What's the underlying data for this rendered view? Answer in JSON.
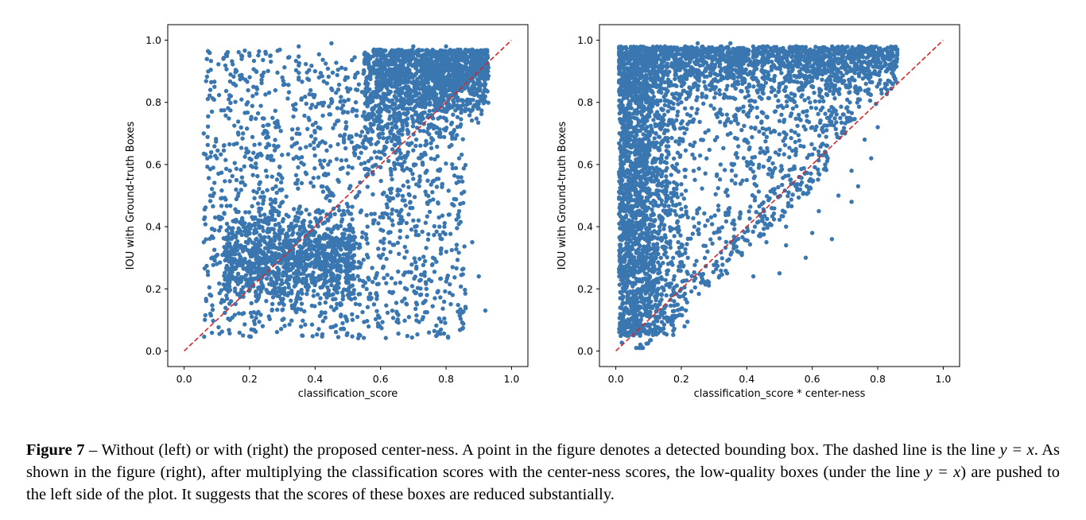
{
  "chart_data": [
    {
      "type": "scatter",
      "xlabel": "classification_score",
      "ylabel": "IOU with Ground-truth Boxes",
      "xlim": [
        -0.05,
        1.05
      ],
      "ylim": [
        -0.05,
        1.05
      ],
      "xticks": [
        "0.0",
        "0.2",
        "0.4",
        "0.6",
        "0.8",
        "1.0"
      ],
      "yticks": [
        "0.0",
        "0.2",
        "0.4",
        "0.6",
        "0.8",
        "1.0"
      ],
      "grid": false,
      "point_color": "#3a76af",
      "reference_line": {
        "from": [
          0,
          0
        ],
        "to": [
          1,
          1
        ],
        "style": "dashed",
        "color": "#d62728"
      },
      "points_note": "about 5000 detections spread over x 0.05–0.93, y 0.03–0.99; densest cluster near x 0.75–0.9, y 0.85–0.97, second dense band x 0.15–0.5, y 0.2–0.45",
      "points": [
        [
          0.12,
          0.94
        ],
        [
          0.2,
          0.95
        ],
        [
          0.35,
          0.98
        ],
        [
          0.45,
          0.99
        ],
        [
          0.58,
          0.97
        ],
        [
          0.7,
          0.98
        ],
        [
          0.8,
          0.98
        ],
        [
          0.88,
          0.97
        ],
        [
          0.92,
          0.96
        ],
        [
          0.85,
          0.9
        ],
        [
          0.78,
          0.88
        ],
        [
          0.72,
          0.92
        ],
        [
          0.65,
          0.9
        ],
        [
          0.6,
          0.85
        ],
        [
          0.5,
          0.88
        ],
        [
          0.4,
          0.9
        ],
        [
          0.3,
          0.88
        ],
        [
          0.22,
          0.9
        ],
        [
          0.15,
          0.86
        ],
        [
          0.08,
          0.84
        ],
        [
          0.06,
          0.7
        ],
        [
          0.1,
          0.62
        ],
        [
          0.18,
          0.7
        ],
        [
          0.28,
          0.72
        ],
        [
          0.38,
          0.75
        ],
        [
          0.48,
          0.78
        ],
        [
          0.58,
          0.76
        ],
        [
          0.68,
          0.8
        ],
        [
          0.75,
          0.72
        ],
        [
          0.82,
          0.7
        ],
        [
          0.86,
          0.78
        ],
        [
          0.9,
          0.82
        ],
        [
          0.84,
          0.62
        ],
        [
          0.78,
          0.58
        ],
        [
          0.72,
          0.55
        ],
        [
          0.66,
          0.6
        ],
        [
          0.6,
          0.62
        ],
        [
          0.52,
          0.65
        ],
        [
          0.44,
          0.6
        ],
        [
          0.35,
          0.62
        ],
        [
          0.25,
          0.58
        ],
        [
          0.16,
          0.55
        ],
        [
          0.08,
          0.5
        ],
        [
          0.06,
          0.35
        ],
        [
          0.1,
          0.28
        ],
        [
          0.14,
          0.32
        ],
        [
          0.2,
          0.38
        ],
        [
          0.26,
          0.42
        ],
        [
          0.32,
          0.4
        ],
        [
          0.38,
          0.36
        ],
        [
          0.44,
          0.42
        ],
        [
          0.5,
          0.45
        ],
        [
          0.56,
          0.4
        ],
        [
          0.62,
          0.44
        ],
        [
          0.7,
          0.42
        ],
        [
          0.78,
          0.4
        ],
        [
          0.84,
          0.45
        ],
        [
          0.88,
          0.35
        ],
        [
          0.9,
          0.24
        ],
        [
          0.92,
          0.13
        ],
        [
          0.82,
          0.18
        ],
        [
          0.74,
          0.2
        ],
        [
          0.66,
          0.22
        ],
        [
          0.58,
          0.15
        ],
        [
          0.5,
          0.18
        ],
        [
          0.42,
          0.12
        ],
        [
          0.36,
          0.05
        ],
        [
          0.3,
          0.1
        ],
        [
          0.24,
          0.08
        ],
        [
          0.18,
          0.05
        ],
        [
          0.14,
          0.1
        ],
        [
          0.08,
          0.12
        ],
        [
          0.2,
          0.2
        ],
        [
          0.28,
          0.25
        ],
        [
          0.34,
          0.3
        ],
        [
          0.4,
          0.28
        ],
        [
          0.46,
          0.3
        ],
        [
          0.54,
          0.28
        ],
        [
          0.6,
          0.3
        ],
        [
          0.68,
          0.32
        ],
        [
          0.76,
          0.3
        ],
        [
          0.82,
          0.27
        ]
      ]
    },
    {
      "type": "scatter",
      "xlabel": "classification_score * center-ness",
      "ylabel": "IOU with Ground-truth Boxes",
      "xlim": [
        -0.05,
        1.05
      ],
      "ylim": [
        -0.05,
        1.05
      ],
      "xticks": [
        "0.0",
        "0.2",
        "0.4",
        "0.6",
        "0.8",
        "1.0"
      ],
      "yticks": [
        "0.0",
        "0.2",
        "0.4",
        "0.6",
        "0.8",
        "1.0"
      ],
      "grid": false,
      "point_color": "#3a76af",
      "reference_line": {
        "from": [
          0,
          0
        ],
        "to": [
          1,
          1
        ],
        "style": "dashed",
        "color": "#d62728"
      },
      "points_note": "about 5000 detections concentrated at low x (0.02–0.3) across y 0.05–0.99, with an upper band reaching x ≈ 0.86 near y 0.9–0.98; few points below the y = x line",
      "points": [
        [
          0.03,
          0.96
        ],
        [
          0.08,
          0.97
        ],
        [
          0.15,
          0.98
        ],
        [
          0.25,
          0.99
        ],
        [
          0.35,
          0.99
        ],
        [
          0.45,
          0.98
        ],
        [
          0.55,
          0.98
        ],
        [
          0.65,
          0.97
        ],
        [
          0.72,
          0.97
        ],
        [
          0.78,
          0.96
        ],
        [
          0.82,
          0.97
        ],
        [
          0.86,
          0.97
        ],
        [
          0.75,
          0.9
        ],
        [
          0.68,
          0.9
        ],
        [
          0.6,
          0.88
        ],
        [
          0.5,
          0.86
        ],
        [
          0.42,
          0.88
        ],
        [
          0.32,
          0.9
        ],
        [
          0.22,
          0.92
        ],
        [
          0.12,
          0.9
        ],
        [
          0.05,
          0.88
        ],
        [
          0.02,
          0.78
        ],
        [
          0.06,
          0.72
        ],
        [
          0.12,
          0.76
        ],
        [
          0.2,
          0.8
        ],
        [
          0.3,
          0.78
        ],
        [
          0.4,
          0.76
        ],
        [
          0.5,
          0.74
        ],
        [
          0.6,
          0.72
        ],
        [
          0.7,
          0.7
        ],
        [
          0.76,
          0.68
        ],
        [
          0.8,
          0.72
        ],
        [
          0.78,
          0.62
        ],
        [
          0.74,
          0.53
        ],
        [
          0.72,
          0.48
        ],
        [
          0.64,
          0.6
        ],
        [
          0.56,
          0.56
        ],
        [
          0.48,
          0.52
        ],
        [
          0.4,
          0.55
        ],
        [
          0.32,
          0.6
        ],
        [
          0.24,
          0.62
        ],
        [
          0.16,
          0.64
        ],
        [
          0.08,
          0.6
        ],
        [
          0.02,
          0.55
        ],
        [
          0.03,
          0.45
        ],
        [
          0.06,
          0.4
        ],
        [
          0.1,
          0.35
        ],
        [
          0.14,
          0.42
        ],
        [
          0.18,
          0.45
        ],
        [
          0.24,
          0.4
        ],
        [
          0.3,
          0.38
        ],
        [
          0.36,
          0.42
        ],
        [
          0.44,
          0.44
        ],
        [
          0.52,
          0.4
        ],
        [
          0.6,
          0.38
        ],
        [
          0.66,
          0.36
        ],
        [
          0.58,
          0.3
        ],
        [
          0.5,
          0.25
        ],
        [
          0.42,
          0.24
        ],
        [
          0.34,
          0.25
        ],
        [
          0.26,
          0.22
        ],
        [
          0.2,
          0.2
        ],
        [
          0.14,
          0.18
        ],
        [
          0.1,
          0.12
        ],
        [
          0.06,
          0.1
        ],
        [
          0.04,
          0.05
        ],
        [
          0.02,
          0.15
        ],
        [
          0.02,
          0.3
        ],
        [
          0.05,
          0.25
        ],
        [
          0.1,
          0.22
        ],
        [
          0.16,
          0.28
        ],
        [
          0.22,
          0.3
        ],
        [
          0.28,
          0.32
        ],
        [
          0.36,
          0.33
        ],
        [
          0.46,
          0.35
        ],
        [
          0.52,
          0.34
        ],
        [
          0.62,
          0.45
        ],
        [
          0.68,
          0.5
        ],
        [
          0.72,
          0.58
        ],
        [
          0.55,
          0.65
        ]
      ]
    }
  ],
  "caption": {
    "label": "Figure 7",
    "dash": " – ",
    "text_1": "Without (left) or with (right) the proposed center-ness. A point in the figure denotes a detected bounding box. The dashed line is the line ",
    "eq_1": "y = x",
    "text_2": ". As shown in the figure (right), after multiplying the classification scores with the center-ness scores, the low-quality boxes (under the line ",
    "eq_2": "y = x",
    "text_3": ") are pushed to the left side of the plot. It suggests that the scores of these boxes are reduced substantially."
  }
}
